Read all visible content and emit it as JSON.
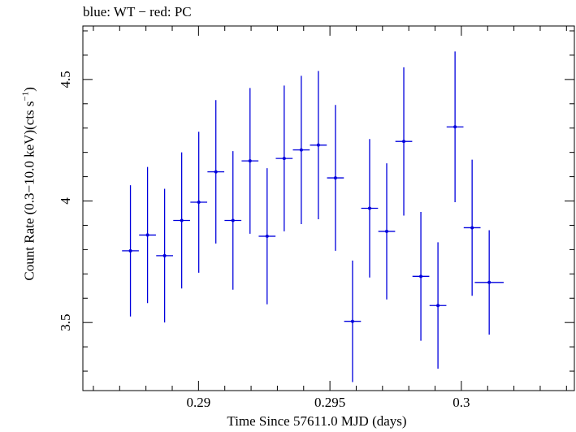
{
  "chart_data": {
    "type": "scatter",
    "title": "blue: WT − red: PC",
    "xlabel": "Time Since 57611.0 MJD (days)",
    "ylabel_main": "Count Rate (0.3−10.0 keV)(cts s",
    "ylabel_sup": "−1",
    "ylabel_end": ")",
    "xlim": [
      0.2856,
      0.3043
    ],
    "ylim": [
      3.22,
      4.72
    ],
    "xticks_major": [
      0.29,
      0.295,
      0.3
    ],
    "xtick_labels": [
      "0.29",
      "0.295",
      "0.3"
    ],
    "xtick_minor_step": 0.001,
    "yticks_major": [
      3.5,
      4.0,
      4.5
    ],
    "ytick_labels": [
      "3.5",
      "4",
      "4.5"
    ],
    "ytick_minor_step": 0.1,
    "grid": false,
    "series": [
      {
        "color": "#0000dd",
        "points": [
          {
            "x": 0.28741,
            "xerr": 0.00032,
            "y": 3.795,
            "yerr": 0.27
          },
          {
            "x": 0.28806,
            "xerr": 0.00032,
            "y": 3.86,
            "yerr": 0.28
          },
          {
            "x": 0.28871,
            "xerr": 0.00032,
            "y": 3.775,
            "yerr": 0.275
          },
          {
            "x": 0.28936,
            "xerr": 0.00032,
            "y": 3.92,
            "yerr": 0.28
          },
          {
            "x": 0.29001,
            "xerr": 0.00032,
            "y": 3.995,
            "yerr": 0.29
          },
          {
            "x": 0.29066,
            "xerr": 0.00032,
            "y": 4.12,
            "yerr": 0.295
          },
          {
            "x": 0.29131,
            "xerr": 0.00032,
            "y": 3.92,
            "yerr": 0.285
          },
          {
            "x": 0.29196,
            "xerr": 0.00032,
            "y": 4.165,
            "yerr": 0.3
          },
          {
            "x": 0.29261,
            "xerr": 0.00032,
            "y": 3.855,
            "yerr": 0.28
          },
          {
            "x": 0.29326,
            "xerr": 0.00032,
            "y": 4.175,
            "yerr": 0.3
          },
          {
            "x": 0.29391,
            "xerr": 0.00032,
            "y": 4.21,
            "yerr": 0.305
          },
          {
            "x": 0.29456,
            "xerr": 0.00032,
            "y": 4.23,
            "yerr": 0.305
          },
          {
            "x": 0.29521,
            "xerr": 0.00032,
            "y": 4.095,
            "yerr": 0.3
          },
          {
            "x": 0.29586,
            "xerr": 0.00032,
            "y": 3.505,
            "yerr": 0.25
          },
          {
            "x": 0.29651,
            "xerr": 0.00032,
            "y": 3.97,
            "yerr": 0.285
          },
          {
            "x": 0.29716,
            "xerr": 0.00032,
            "y": 3.875,
            "yerr": 0.28
          },
          {
            "x": 0.29781,
            "xerr": 0.00032,
            "y": 4.245,
            "yerr": 0.305
          },
          {
            "x": 0.29846,
            "xerr": 0.00032,
            "y": 3.69,
            "yerr": 0.265
          },
          {
            "x": 0.29911,
            "xerr": 0.00032,
            "y": 3.57,
            "yerr": 0.26
          },
          {
            "x": 0.29976,
            "xerr": 0.00032,
            "y": 4.305,
            "yerr": 0.31
          },
          {
            "x": 0.30041,
            "xerr": 0.00032,
            "y": 3.89,
            "yerr": 0.28
          },
          {
            "x": 0.30106,
            "xerr": 0.00055,
            "y": 3.665,
            "yerr": 0.215
          }
        ]
      }
    ]
  }
}
